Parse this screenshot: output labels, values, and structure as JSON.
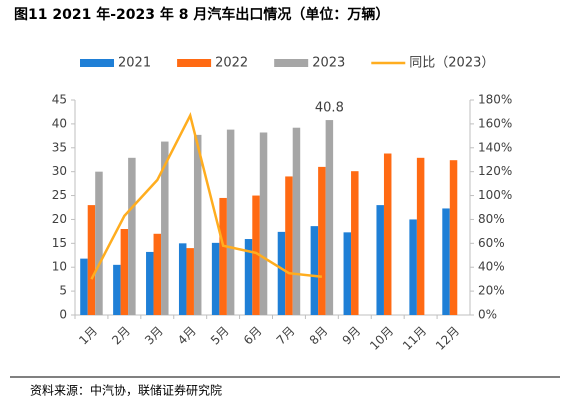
{
  "chart_data": {
    "type": "bar_line",
    "title": "图11 2021 年-2023 年 8 月汽车出口情况（单位：万辆）",
    "source": "资料来源：中汽协，联储证券研究院",
    "categories": [
      "1月",
      "2月",
      "3月",
      "4月",
      "5月",
      "6月",
      "7月",
      "8月",
      "9月",
      "10月",
      "11月",
      "12月"
    ],
    "series": [
      {
        "name": "2021",
        "color": "#1f7fd6",
        "type": "bar",
        "values": [
          11.8,
          10.5,
          13.2,
          15.0,
          15.1,
          15.9,
          17.4,
          18.6,
          17.3,
          23.0,
          20.0,
          22.3
        ]
      },
      {
        "name": "2022",
        "color": "#ff6a13",
        "type": "bar",
        "values": [
          23.0,
          18.0,
          17.0,
          14.0,
          24.5,
          25.0,
          29.0,
          31.0,
          30.1,
          33.8,
          32.9,
          32.4
        ]
      },
      {
        "name": "2023",
        "color": "#a6a6a6",
        "type": "bar",
        "values": [
          30.0,
          32.9,
          36.3,
          37.7,
          38.8,
          38.2,
          39.2,
          40.8,
          null,
          null,
          null,
          null
        ]
      },
      {
        "name": "同比（2023）",
        "color": "#ffad1f",
        "type": "line",
        "axis": "y2",
        "values": [
          30,
          83,
          113,
          167,
          58,
          52,
          35,
          32,
          null,
          null,
          null,
          null
        ]
      }
    ],
    "ylim": [
      0,
      45
    ],
    "yticks": [
      0,
      5,
      10,
      15,
      20,
      25,
      30,
      35,
      40,
      45
    ],
    "y2lim": [
      0,
      180
    ],
    "y2ticks": [
      {
        "value": 0,
        "label": "0%"
      },
      {
        "value": 20,
        "label": "20%"
      },
      {
        "value": 40,
        "label": "40%"
      },
      {
        "value": 60,
        "label": "60%"
      },
      {
        "value": 80,
        "label": "80%"
      },
      {
        "value": 100,
        "label": "100%"
      },
      {
        "value": 120,
        "label": "120%"
      },
      {
        "value": 140,
        "label": "140%"
      },
      {
        "value": 160,
        "label": "160%"
      },
      {
        "value": 180,
        "label": "180%"
      }
    ],
    "legend": "top"
  }
}
